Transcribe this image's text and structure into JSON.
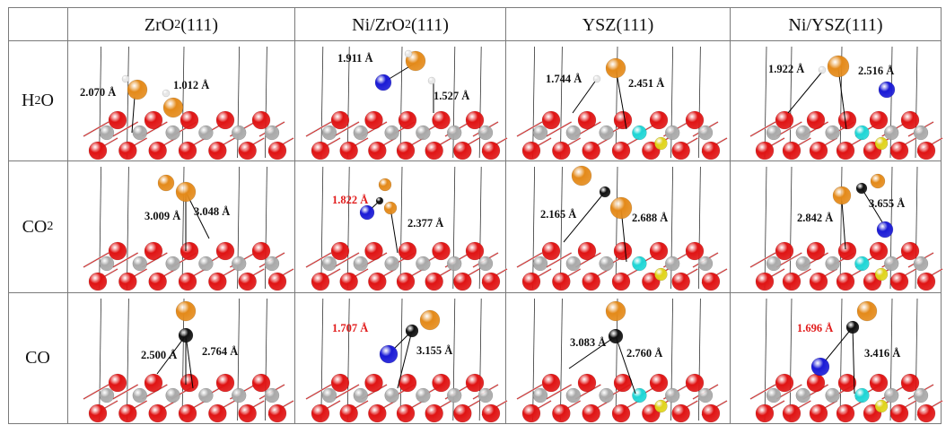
{
  "table": {
    "headers": [
      {
        "pre": "ZrO",
        "sub": "2",
        "post": "(111)"
      },
      {
        "pre": "Ni/ZrO",
        "sub": "2",
        "post": "(111)"
      },
      {
        "pre": "YSZ(111)",
        "sub": "",
        "post": ""
      },
      {
        "pre": "Ni/YSZ(111)",
        "sub": "",
        "post": ""
      }
    ],
    "rows": [
      {
        "pre": "H",
        "sub": "2",
        "post": "O"
      },
      {
        "pre": "CO",
        "sub": "2",
        "post": ""
      },
      {
        "pre": "CO",
        "sub": "",
        "post": ""
      }
    ]
  },
  "cells": [
    [
      {
        "labels": [
          {
            "text": "2.070 Å",
            "red": false
          },
          {
            "text": "1.012 Å",
            "red": false
          }
        ]
      },
      {
        "labels": [
          {
            "text": "1.911 Å",
            "red": false
          },
          {
            "text": "1.527 Å",
            "red": false
          }
        ]
      },
      {
        "labels": [
          {
            "text": "1.744 Å",
            "red": false
          },
          {
            "text": "2.451 Å",
            "red": false
          }
        ]
      },
      {
        "labels": [
          {
            "text": "1.922 Å",
            "red": false
          },
          {
            "text": "2.516 Å",
            "red": false
          }
        ]
      }
    ],
    [
      {
        "labels": [
          {
            "text": "3.009 Å",
            "red": false
          },
          {
            "text": "3.048 Å",
            "red": false
          }
        ]
      },
      {
        "labels": [
          {
            "text": "1.822 Å",
            "red": true
          },
          {
            "text": "2.377 Å",
            "red": false
          }
        ]
      },
      {
        "labels": [
          {
            "text": "2.165 Å",
            "red": false
          },
          {
            "text": "2.688 Å",
            "red": false
          }
        ]
      },
      {
        "labels": [
          {
            "text": "2.842 Å",
            "red": false
          },
          {
            "text": "3.655 Å",
            "red": false
          }
        ]
      }
    ],
    [
      {
        "labels": [
          {
            "text": "2.500 Å",
            "red": false
          },
          {
            "text": "2.764 Å",
            "red": false
          }
        ]
      },
      {
        "labels": [
          {
            "text": "1.707 Å",
            "red": true
          },
          {
            "text": "3.155 Å",
            "red": false
          }
        ]
      },
      {
        "labels": [
          {
            "text": "3.083 Å",
            "red": false
          },
          {
            "text": "2.760 Å",
            "red": false
          }
        ]
      },
      {
        "labels": [
          {
            "text": "1.696 Å",
            "red": true
          },
          {
            "text": "3.416 Å",
            "red": false
          }
        ]
      }
    ]
  ],
  "colors": {
    "oxygen": "#e01414",
    "zirconium": "#a9a9a9",
    "yttrium": "#1fd6d6",
    "nickel": "#1a1ad6",
    "hydrogen": "#e6e6e6",
    "adsorbate_o": "#e48a1a",
    "carbon": "#111111",
    "dopant": "#e0d41a",
    "red_label": "#e11b1b",
    "grid": "#7a7a7a"
  }
}
